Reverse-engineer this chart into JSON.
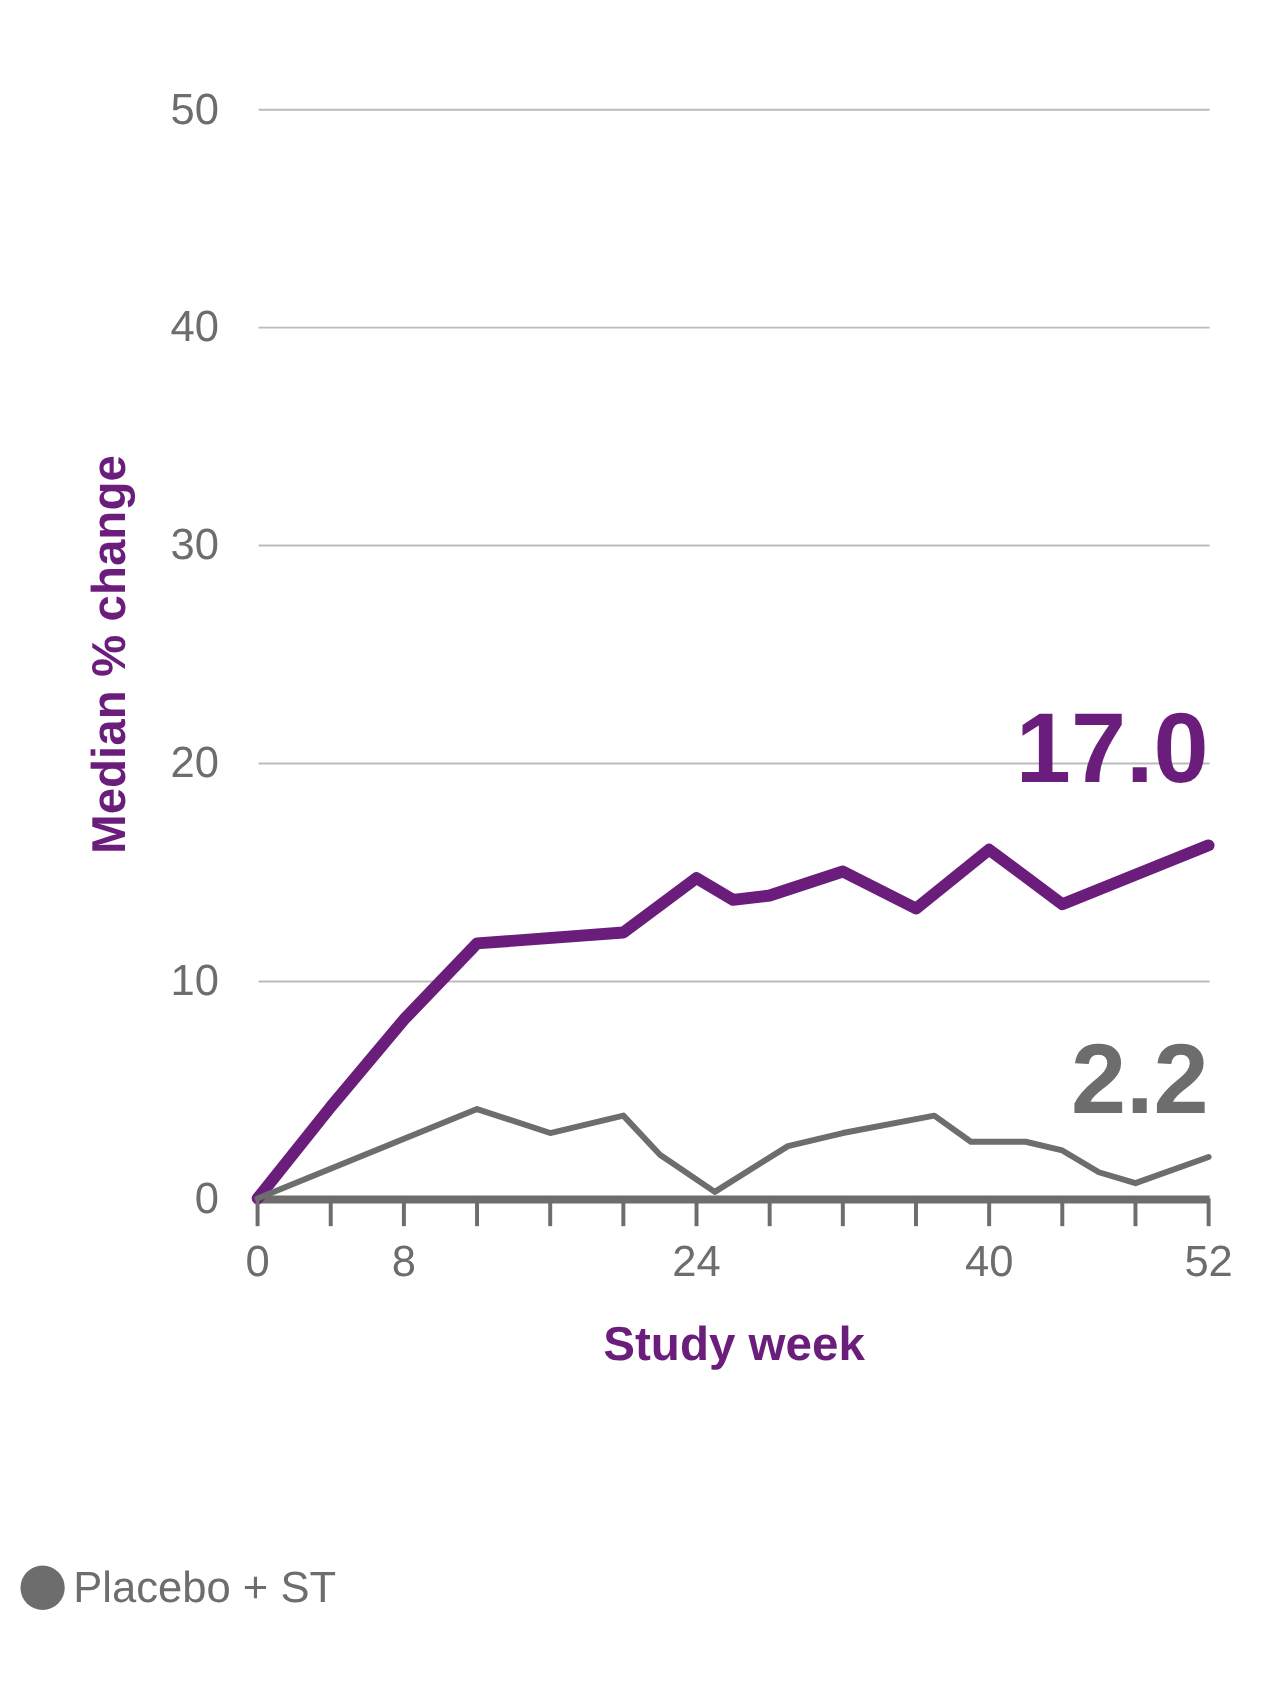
{
  "chart_data": {
    "type": "line",
    "xlabel": "Study week",
    "ylabel": "Median % change",
    "xlim": [
      0,
      52
    ],
    "ylim": [
      0,
      50
    ],
    "xticks": [
      0,
      {
        "value": 4,
        "label": null
      },
      8,
      {
        "value": 12,
        "label": null
      },
      {
        "value": 16,
        "label": null
      },
      {
        "value": 20,
        "label": null
      },
      24,
      {
        "value": 28,
        "label": null
      },
      {
        "value": 32,
        "label": null
      },
      {
        "value": 36,
        "label": null
      },
      40,
      {
        "value": 44,
        "label": null
      },
      {
        "value": 48,
        "label": null
      },
      52
    ],
    "yticks": [
      0,
      10,
      20,
      30,
      40,
      50
    ],
    "grid": "y",
    "legend": "bottom left",
    "marker": "none",
    "line_style": "solid",
    "series": [
      {
        "color": "#6b1d7c",
        "x": [
          0,
          4,
          8,
          12,
          20,
          24,
          26,
          28,
          32,
          36,
          40,
          44,
          52
        ],
        "values": [
          0,
          4.2,
          8.2,
          11.7,
          12.2,
          14.7,
          13.7,
          13.9,
          15,
          13.3,
          16,
          13.5,
          16.2
        ]
      },
      {
        "name": "Placebo + ST",
        "color": "#6d6d6d",
        "x": [
          0,
          12,
          16,
          20,
          22,
          25,
          29,
          32,
          37,
          39,
          42,
          44,
          46,
          48,
          52
        ],
        "values": [
          0,
          4.1,
          3,
          3.8,
          2,
          0.3,
          2.4,
          3,
          3.8,
          2.6,
          2.6,
          2.2,
          1.2,
          0.7,
          1.9
        ]
      }
    ],
    "annotations": [
      "17.0",
      "2.2"
    ]
  }
}
